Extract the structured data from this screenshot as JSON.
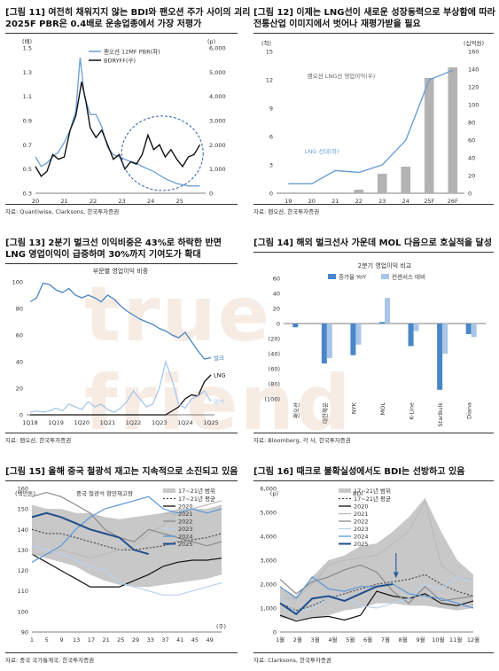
{
  "watermark": "true friend",
  "charts": [
    {
      "title": "[그림 11] 여전히 채워지지 않는 BDI와 팬오션 주가 사이의 괴리\n2025F PBR은 0.4배로 운송업종에서 가장 저평가",
      "source": "자료: Quantiwise, Clarksons, 한국투자증권",
      "chart_data": {
        "type": "line",
        "left_unit": "(배)",
        "right_unit": "(p)",
        "left_ylim": [
          0.3,
          1.5
        ],
        "left_ticks": [
          "1.5",
          "1.3",
          "1.1",
          "0.9",
          "0.7",
          "0.5",
          "0.3"
        ],
        "right_ylim": [
          0,
          6000
        ],
        "right_ticks": [
          "6,000",
          "5,000",
          "4,000",
          "3,000",
          "2,000",
          "1,000",
          "0"
        ],
        "x_ticks": [
          "20",
          "21",
          "22",
          "23",
          "24",
          "25"
        ],
        "xlim": [
          20,
          25.9
        ],
        "series": [
          {
            "name": "팬오션 12MF PBR(좌)",
            "axis": "left",
            "color": "#6a9ed5",
            "x": [
              20,
              20.2,
              20.4,
              20.6,
              20.8,
              21.0,
              21.2,
              21.4,
              21.55,
              21.7,
              21.9,
              22.1,
              22.3,
              22.5,
              22.7,
              22.9,
              23.1,
              23.3,
              23.5,
              23.7,
              23.9,
              24.1,
              24.3,
              24.5,
              24.7,
              24.9,
              25.1,
              25.3,
              25.5,
              25.7
            ],
            "values": [
              0.6,
              0.52,
              0.55,
              0.6,
              0.64,
              0.72,
              0.82,
              0.98,
              1.42,
              1.1,
              0.95,
              0.95,
              0.85,
              0.68,
              0.62,
              0.6,
              0.58,
              0.56,
              0.55,
              0.52,
              0.5,
              0.48,
              0.45,
              0.42,
              0.4,
              0.38,
              0.37,
              0.36,
              0.36,
              0.36
            ]
          },
          {
            "name": "BDRYFF(우)",
            "axis": "right",
            "color": "#111111",
            "x": [
              20,
              20.2,
              20.4,
              20.6,
              20.8,
              21.0,
              21.2,
              21.4,
              21.6,
              21.75,
              21.9,
              22.1,
              22.3,
              22.5,
              22.7,
              22.9,
              23.1,
              23.3,
              23.5,
              23.7,
              23.9,
              24.1,
              24.3,
              24.5,
              24.7,
              24.9,
              25.1,
              25.3,
              25.5,
              25.7
            ],
            "values": [
              1100,
              700,
              900,
              1600,
              1400,
              1500,
              2600,
              3200,
              4600,
              3800,
              2700,
              2300,
              2600,
              2000,
              1400,
              1600,
              1000,
              1300,
              1200,
              1600,
              2400,
              1800,
              2000,
              1500,
              1800,
              1400,
              1100,
              1500,
              1600,
              2000
            ]
          }
        ],
        "highlight": "dashed ellipse around 2024–2025 gap"
      }
    },
    {
      "title": "[그림 12] 이제는 LNG선이 새로운 성장동력으로 부상함에 따라\n전통산업 이미지에서 벗어나 재평가받을 필요",
      "source": "자료: 팬오션, 한국투자증권",
      "chart_data": {
        "type": "bar",
        "categories": [
          "19",
          "20",
          "21",
          "22",
          "23",
          "24",
          "25F",
          "26F"
        ],
        "left_unit": "(척)",
        "right_unit": "(십억원)",
        "left_ylim": [
          0,
          15
        ],
        "left_ticks": [
          "15",
          "12",
          "9",
          "6",
          "3",
          "0"
        ],
        "right_ylim": [
          0,
          160
        ],
        "right_ticks": [
          "160",
          "140",
          "120",
          "100",
          "80",
          "60",
          "40",
          "20",
          "0"
        ],
        "series": [
          {
            "name": "팬오션 LNG선 영업이익(우)",
            "type": "bar",
            "axis": "right",
            "color": "#b3b3b3",
            "values": [
              0,
              0,
              0,
              4,
              22,
              30,
              130,
              142
            ]
          },
          {
            "name": "LNG 선대(좌)",
            "type": "line",
            "axis": "left",
            "color": "#6a9ed5",
            "values": [
              1,
              1,
              2.4,
              2.2,
              3,
              5.6,
              12,
              13
            ]
          }
        ]
      }
    },
    {
      "title": "[그림 13] 2분기 벌크선 이익비중은 43%로 하락한 반면\nLNG 영업이익이 급증하며 30%까지 기여도가 확대",
      "source": "자료: 팬오션, 한국투자증권",
      "chart_data": {
        "type": "line",
        "title": "부문별 영업이익 비중",
        "ylim": [
          0,
          100
        ],
        "y_ticks": [
          "100",
          "80",
          "60",
          "40",
          "20",
          "0"
        ],
        "x_ticks": [
          "1Q18",
          "1Q19",
          "1Q20",
          "1Q21",
          "1Q22",
          "1Q23",
          "1Q24",
          "1Q25"
        ],
        "series": [
          {
            "name": "벌크",
            "color": "#4a86c8",
            "values": [
              85,
              88,
              99,
              98,
              94,
              92,
              95,
              90,
              88,
              90,
              88,
              85,
              90,
              87,
              82,
              78,
              75,
              72,
              70,
              68,
              65,
              63,
              60,
              58,
              62,
              55,
              48,
              42,
              43
            ]
          },
          {
            "name": "LNG",
            "color": "#111111",
            "values": [
              0,
              0,
              0,
              0,
              0,
              0,
              0,
              0,
              0,
              0,
              0,
              0,
              0,
              0,
              0,
              0,
              0,
              0,
              0,
              0,
              0,
              0,
              3,
              6,
              12,
              15,
              14,
              25,
              30
            ]
          },
          {
            "name": "탱커",
            "color": "#a9c6e8",
            "values": [
              2,
              3,
              2,
              3,
              5,
              3,
              8,
              6,
              4,
              10,
              6,
              8,
              4,
              2,
              5,
              10,
              18,
              12,
              6,
              8,
              20,
              40,
              26,
              8,
              5,
              12,
              14,
              18,
              10
            ]
          }
        ]
      }
    },
    {
      "title": "[그림 14] 해외 벌크선사 가운데 MOL 다음으로 호실적을 달성",
      "source": "자료: Bloomberg, 각 사, 한국투자증권",
      "chart_data": {
        "type": "bar",
        "title": "2분기 영업이익 비교",
        "ylim": [
          -100,
          60
        ],
        "y_ticks": [
          "60",
          "40",
          "20",
          "0",
          "(20)",
          "(40)",
          "(60)",
          "(80)",
          "(100)"
        ],
        "categories": [
          "팬오션",
          "대한해운",
          "NYK",
          "MOL",
          "K-Line",
          "StarBulk",
          "Diana"
        ],
        "series": [
          {
            "name": "증가율 YoY",
            "color": "#4a86c8",
            "values": [
              -5,
              -53,
              -42,
              2,
              -30,
              -88,
              -14
            ]
          },
          {
            "name": "컨센서스 대비",
            "color": "#a9c6e8",
            "values": [
              0,
              -46,
              -28,
              34,
              -10,
              -40,
              -18
            ]
          }
        ]
      }
    },
    {
      "title": "[그림 15] 올해 중국 철광석 재고는 지속적으로 소진되고 있음",
      "source": "자료: 중국 국가통계국, 한국투자증권",
      "chart_data": {
        "type": "line",
        "title": "중국 철광석 항만재고량",
        "left_unit": "(백만톤)",
        "x_unit": "(주)",
        "ylim": [
          90,
          160
        ],
        "y_ticks": [
          "160",
          "150",
          "140",
          "130",
          "120",
          "110",
          "100",
          "90"
        ],
        "x_ticks": [
          "1",
          "5",
          "9",
          "13",
          "17",
          "21",
          "25",
          "29",
          "33",
          "37",
          "41",
          "45",
          "49"
        ],
        "xlim": [
          1,
          52
        ],
        "series": [
          {
            "name": "17~21년 범위",
            "kind": "band",
            "color": "#c8c8c8",
            "upper": [
              152,
              150,
              150,
              148,
              148,
              146,
              145,
              146,
              147,
              148,
              150,
              150,
              150,
              152
            ],
            "lower": [
              128,
              126,
              124,
              122,
              118,
              115,
              113,
              112,
              112,
              113,
              114,
              115,
              116,
              118
            ]
          },
          {
            "name": "17~21년 평균",
            "color": "#444444",
            "dash": "2,2",
            "values": [
              140,
              138,
              138,
              136,
              134,
              132,
              130,
              130,
              131,
              132,
              134,
              135,
              136,
              138
            ]
          },
          {
            "name": "2020",
            "color": "#111111",
            "values": [
              128,
              124,
              120,
              116,
              112,
              112,
              112,
              115,
              118,
              122,
              124,
              125,
              125,
              126
            ]
          },
          {
            "name": "2021",
            "color": "#bbbbbb",
            "values": [
              128,
              128,
              130,
              128,
              126,
              128,
              130,
              132,
              138,
              142,
              148,
              150,
              152,
              154
            ]
          },
          {
            "name": "2022",
            "color": "#8a8a8a",
            "values": [
              156,
              158,
              156,
              152,
              148,
              140,
              136,
              134,
              140,
              138,
              136,
              134,
              132,
              134
            ]
          },
          {
            "name": "2023",
            "color": "#b9d2ee",
            "values": [
              132,
              130,
              128,
              125,
              122,
              120,
              114,
              112,
              110,
              108,
              108,
              110,
              112,
              114
            ]
          },
          {
            "name": "2024",
            "color": "#5b97d8",
            "values": [
              124,
              128,
              132,
              140,
              146,
              150,
              152,
              154,
              156,
              150,
              148,
              150,
              148,
              150
            ]
          },
          {
            "name": "2025",
            "color": "#1f4e8c",
            "values": [
              146,
              148,
              146,
              143,
              140,
              138,
              136,
              130,
              128
            ]
          }
        ]
      }
    },
    {
      "title": "[그림 16] 때크로 불확실성에서도 BDI는 선방하고 있음",
      "source": "자료: Clarksons, 한국투자증권",
      "chart_data": {
        "type": "line",
        "title": "BDI",
        "left_unit": "(p)",
        "ylim": [
          0,
          6000
        ],
        "y_ticks": [
          "6,000",
          "5,000",
          "4,000",
          "3,000",
          "2,000",
          "1,000",
          "0"
        ],
        "x_ticks": [
          "1월",
          "2월",
          "3월",
          "4월",
          "5월",
          "6월",
          "7월",
          "8월",
          "9월",
          "10월",
          "11월",
          "12월"
        ],
        "series": [
          {
            "name": "17~21년 범위",
            "kind": "band",
            "color": "#c8c8c8",
            "upper": [
              1900,
              1500,
              2300,
              3000,
              3200,
              3600,
              3700,
              4200,
              4800,
              5600,
              4200,
              3000,
              2400
            ],
            "lower": [
              600,
              500,
              600,
              700,
              900,
              1000,
              1200,
              1200,
              1100,
              1100,
              1000,
              900,
              1000
            ]
          },
          {
            "name": "17~21년 평균",
            "color": "#444444",
            "dash": "2,2",
            "values": [
              1200,
              900,
              1100,
              1400,
              1600,
              1800,
              2000,
              2100,
              2200,
              2400,
              2000,
              1700,
              1500
            ]
          },
          {
            "name": "2020",
            "color": "#111111",
            "values": [
              700,
              450,
              600,
              650,
              500,
              700,
              1700,
              1500,
              1400,
              1600,
              1200,
              1100,
              1300
            ]
          },
          {
            "name": "2021",
            "color": "#bbbbbb",
            "values": [
              1400,
              1400,
              2000,
              2800,
              3000,
              3100,
              3200,
              3700,
              4200,
              5500,
              2800,
              2300,
              2200
            ]
          },
          {
            "name": "2022",
            "color": "#8a8a8a",
            "values": [
              2200,
              1600,
              2100,
              2300,
              2600,
              2800,
              2500,
              1700,
              1200,
              1900,
              1300,
              1400,
              1500
            ]
          },
          {
            "name": "2023",
            "color": "#b9d2ee",
            "values": [
              1500,
              800,
              1000,
              1400,
              1500,
              1100,
              1000,
              1200,
              1400,
              2000,
              1800,
              2300,
              2100
            ]
          },
          {
            "name": "2024",
            "color": "#5b97d8",
            "values": [
              1900,
              1400,
              2300,
              1800,
              1700,
              1900,
              1900,
              2000,
              1600,
              1500,
              1400,
              1200,
              1000
            ]
          },
          {
            "name": "2025",
            "color": "#1f4e8c",
            "values": [
              1200,
              750,
              1400,
              1500,
              1300,
              1600,
              1900,
              2000
            ]
          }
        ],
        "marker": "arrow at current level"
      }
    }
  ]
}
